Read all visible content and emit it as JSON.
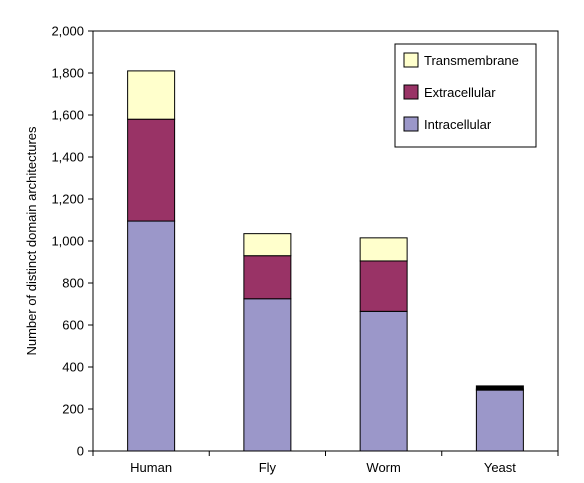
{
  "chart_data": {
    "type": "bar",
    "stacked": true,
    "title": "",
    "xlabel": "",
    "ylabel": "Number of distinct domain architectures",
    "ylim": [
      0,
      2000
    ],
    "yticks": [
      "0",
      "200",
      "400",
      "600",
      "800",
      "1,000",
      "1,200",
      "1,400",
      "1,600",
      "1,800",
      "2,000"
    ],
    "categories": [
      "Human",
      "Fly",
      "Worm",
      "Yeast"
    ],
    "series": [
      {
        "name": "Intracellular",
        "color": "#9b97c9",
        "values": [
          1095,
          725,
          665,
          290
        ]
      },
      {
        "name": "Extracellular",
        "color": "#993366",
        "values": [
          485,
          205,
          240,
          5
        ]
      },
      {
        "name": "Transmembrane",
        "color": "#ffffcc",
        "values": [
          230,
          105,
          110,
          15
        ]
      }
    ],
    "legend_order": [
      "Transmembrane",
      "Extracellular",
      "Intracellular"
    ],
    "legend_position": "top-right",
    "grid": false
  }
}
